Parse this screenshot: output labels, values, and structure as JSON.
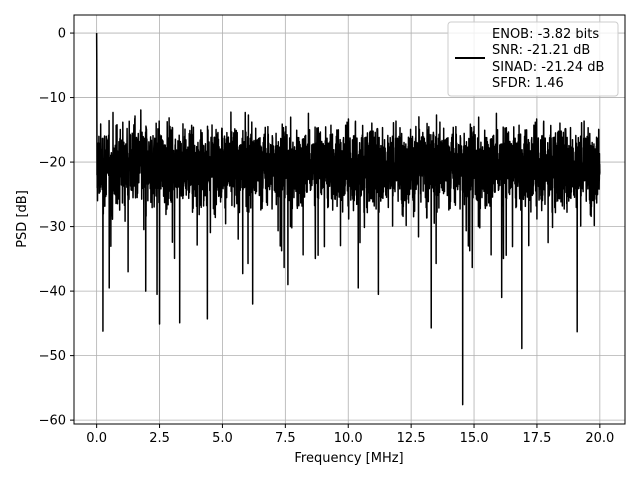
{
  "chart_data": {
    "type": "line",
    "title": "",
    "xlabel": "Frequency [MHz]",
    "ylabel": "PSD [dB]",
    "xlim": [
      -0.9,
      21.0
    ],
    "ylim": [
      -60.6,
      2.8
    ],
    "xticks": [
      0.0,
      2.5,
      5.0,
      7.5,
      10.0,
      12.5,
      15.0,
      17.5,
      20.0
    ],
    "xtick_labels": [
      "0.0",
      "2.5",
      "5.0",
      "7.5",
      "10.0",
      "12.5",
      "15.0",
      "17.5",
      "20.0"
    ],
    "yticks": [
      0,
      -10,
      -20,
      -30,
      -40,
      -50,
      -60
    ],
    "ytick_labels": [
      "0",
      "−10",
      "−20",
      "−30",
      "−40",
      "−50",
      "−60"
    ],
    "grid": true,
    "legend": {
      "placement": "top-right",
      "entries": [
        "ENOB: -3.82 bits",
        "SNR: -21.21 dB",
        "SINAD: -21.24 dB",
        "SFDR: 1.46"
      ]
    },
    "series": [
      {
        "color": "#000000",
        "x_range": [
          0.0,
          20.0
        ],
        "approx_noise_mean_db": -20.5,
        "approx_noise_band_db": [
          -32,
          -10
        ],
        "peak": {
          "x": 0.0,
          "y": 0.0
        },
        "notable_dips": [
          {
            "x": 0.25,
            "y": -46.2
          },
          {
            "x": 0.5,
            "y": -39.5
          },
          {
            "x": 1.25,
            "y": -37.0
          },
          {
            "x": 1.95,
            "y": -40.0
          },
          {
            "x": 2.4,
            "y": -40.5
          },
          {
            "x": 2.5,
            "y": -45.1
          },
          {
            "x": 3.3,
            "y": -44.9
          },
          {
            "x": 4.4,
            "y": -44.3
          },
          {
            "x": 6.2,
            "y": -42.0
          },
          {
            "x": 7.6,
            "y": -39.0
          },
          {
            "x": 10.4,
            "y": -39.5
          },
          {
            "x": 11.2,
            "y": -40.5
          },
          {
            "x": 13.3,
            "y": -45.7
          },
          {
            "x": 14.55,
            "y": -57.6
          },
          {
            "x": 16.1,
            "y": -41.0
          },
          {
            "x": 16.9,
            "y": -48.9
          },
          {
            "x": 19.1,
            "y": -46.3
          }
        ]
      }
    ]
  }
}
